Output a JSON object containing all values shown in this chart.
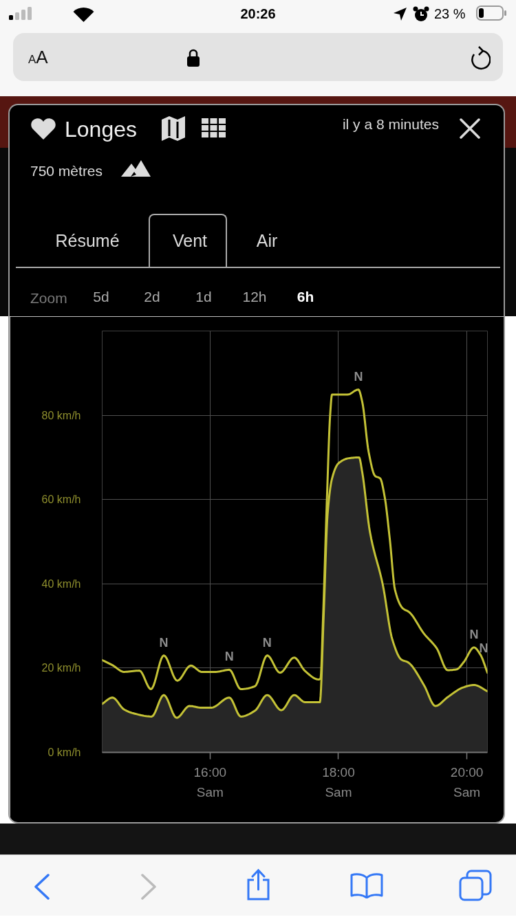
{
  "chart_data": {
    "type": "line",
    "title": "Longes",
    "subtitle": "750 mètres",
    "xlim": [
      14.32,
      20.32
    ],
    "xticks": [
      {
        "value": 16,
        "label": "16:00"
      },
      {
        "value": 18,
        "label": "18:00"
      },
      {
        "value": 20,
        "label": "20:00"
      }
    ],
    "ylim": [
      0,
      100
    ],
    "yticks": [
      {
        "value": 0,
        "label": "0 km/h"
      },
      {
        "value": 20,
        "label": "20 km/h"
      },
      {
        "value": 40,
        "label": "40 km/h"
      },
      {
        "value": 60,
        "label": "60 km/h"
      },
      {
        "value": 80,
        "label": "80 km/h"
      },
      {
        "value": 100,
        "label": null
      }
    ],
    "grid": true,
    "series": [
      {
        "type": "area",
        "color": "#c4c236",
        "x": [
          14.32,
          14.48,
          14.66,
          14.8,
          15.09,
          15.28,
          15.48,
          15.68,
          15.87,
          16.02,
          16.3,
          16.48,
          16.7,
          16.89,
          17.11,
          17.31,
          17.48,
          17.71,
          17.77,
          17.83,
          17.9,
          18.0,
          18.16,
          18.32,
          18.37,
          18.49,
          18.69,
          18.84,
          18.98,
          19.08,
          19.33,
          19.51,
          19.7,
          19.94,
          20.11,
          20.32
        ],
        "values": [
          11.5,
          13.0,
          10.2,
          9.3,
          8.5,
          13.6,
          8.2,
          11.0,
          10.6,
          10.6,
          13.0,
          8.5,
          9.9,
          13.6,
          10.0,
          13.6,
          11.9,
          11.9,
          32.7,
          56.5,
          65.0,
          68.6,
          69.8,
          70.0,
          66.5,
          52.3,
          39.8,
          26.7,
          22.0,
          21.4,
          16.0,
          11.0,
          13.1,
          15.4,
          16.0,
          14.5
        ]
      },
      {
        "color": "#c4c236",
        "x": [
          14.32,
          14.48,
          14.66,
          14.9,
          15.08,
          15.28,
          15.49,
          15.7,
          15.87,
          16.09,
          16.3,
          16.48,
          16.7,
          16.89,
          17.09,
          17.31,
          17.48,
          17.69,
          17.72,
          17.76,
          17.82,
          17.87,
          17.9,
          18.14,
          18.31,
          18.37,
          18.47,
          18.57,
          18.65,
          18.72,
          18.8,
          18.88,
          19.0,
          19.1,
          19.33,
          19.53,
          19.7,
          19.84,
          19.95,
          20.11,
          20.21,
          20.32
        ],
        "values": [
          21.9,
          20.7,
          19.1,
          19.4,
          15.0,
          23.0,
          17.0,
          20.6,
          19.1,
          19.1,
          19.6,
          15.0,
          15.7,
          23.0,
          18.9,
          22.5,
          19.3,
          17.3,
          17.5,
          32.0,
          60.0,
          80.0,
          84.9,
          84.9,
          86.1,
          83.2,
          71.3,
          65.6,
          65.0,
          60.6,
          50.5,
          38.6,
          34.2,
          33.3,
          28.2,
          24.7,
          19.5,
          19.7,
          21.4,
          24.9,
          23.2,
          18.9
        ]
      }
    ],
    "annotations": [
      "20:26",
      "23 %",
      "AA",
      "il y a 8 minutes",
      "Résumé",
      "Vent",
      "Air",
      "Zoom",
      "5d",
      "2d",
      "1d",
      "12h",
      "6h",
      "Sam",
      "Sam",
      "Sam",
      {
        "text": "N",
        "x": 15.28,
        "y": 23.0
      },
      {
        "text": "N",
        "x": 16.3,
        "y": 19.6
      },
      {
        "text": "N",
        "x": 16.89,
        "y": 23.0
      },
      {
        "text": "N",
        "x": 18.31,
        "y": 86.1
      },
      {
        "text": "N",
        "x": 20.11,
        "y": 24.9
      },
      {
        "text": "N",
        "x": 20.32,
        "y": 18.9
      }
    ]
  }
}
